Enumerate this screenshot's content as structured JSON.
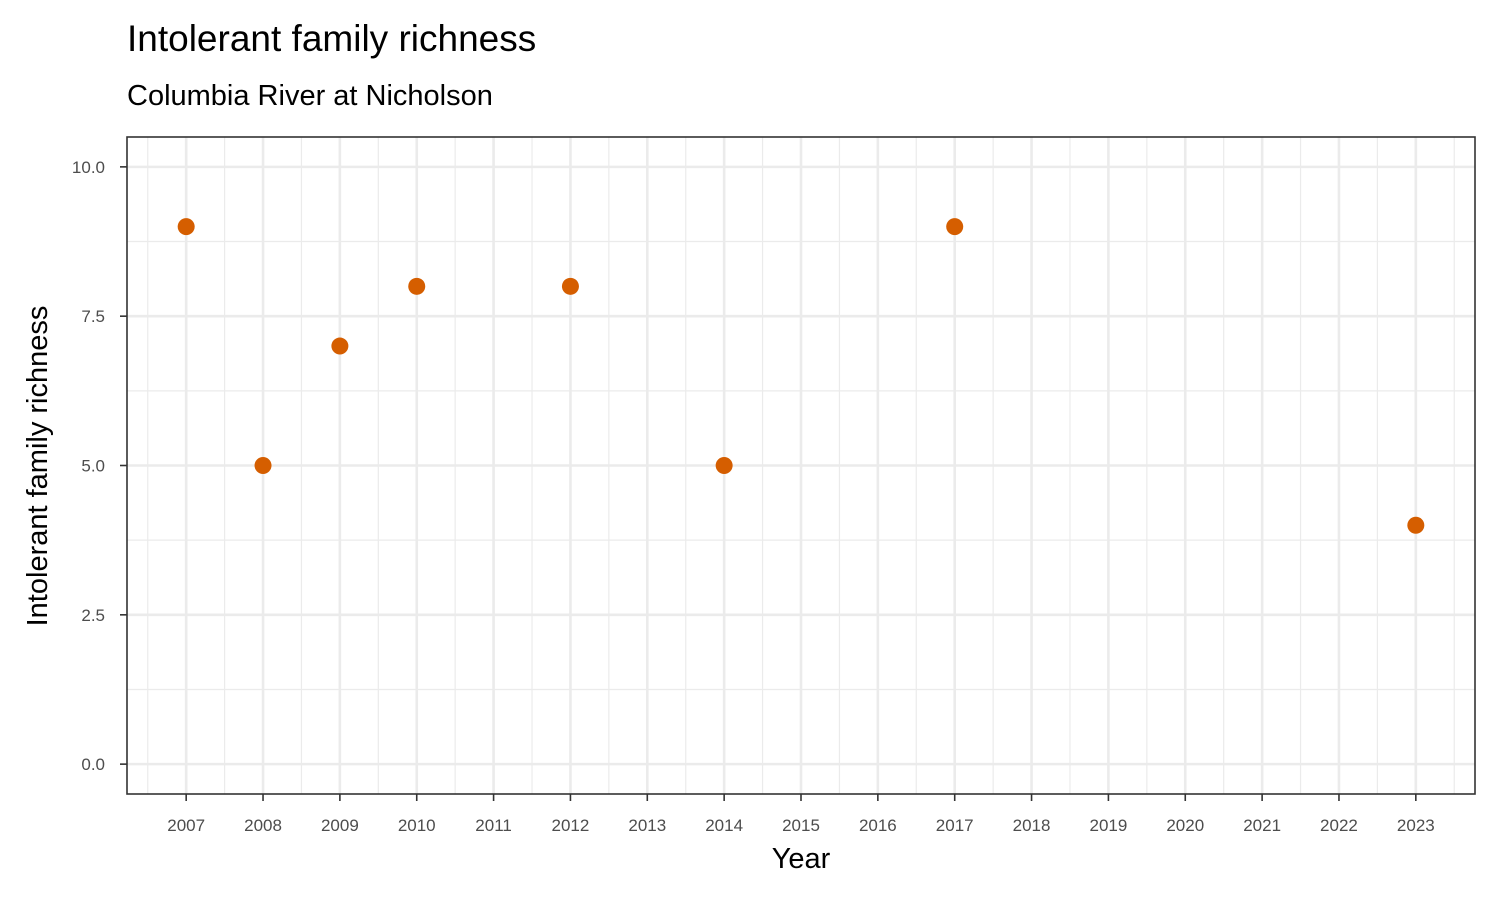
{
  "chart_data": {
    "type": "scatter",
    "title": "Intolerant family richness",
    "subtitle": "Columbia River at Nicholson",
    "xlabel": "Year",
    "ylabel": "Intolerant family richness",
    "x_ticks": [
      "2007",
      "2008",
      "2009",
      "2010",
      "2011",
      "2012",
      "2013",
      "2014",
      "2015",
      "2016",
      "2017",
      "2018",
      "2019",
      "2020",
      "2021",
      "2022",
      "2023"
    ],
    "y_ticks": [
      "0.0",
      "2.5",
      "5.0",
      "7.5",
      "10.0"
    ],
    "xlim": [
      2006.23,
      2023.77
    ],
    "ylim": [
      -0.5,
      10.5
    ],
    "grid": true,
    "point_color": "#D55E00",
    "points": [
      {
        "x": 2007,
        "y": 9
      },
      {
        "x": 2008,
        "y": 5
      },
      {
        "x": 2009,
        "y": 7
      },
      {
        "x": 2010,
        "y": 8
      },
      {
        "x": 2012,
        "y": 8
      },
      {
        "x": 2014,
        "y": 5
      },
      {
        "x": 2017,
        "y": 9
      },
      {
        "x": 2023,
        "y": 4
      }
    ]
  }
}
